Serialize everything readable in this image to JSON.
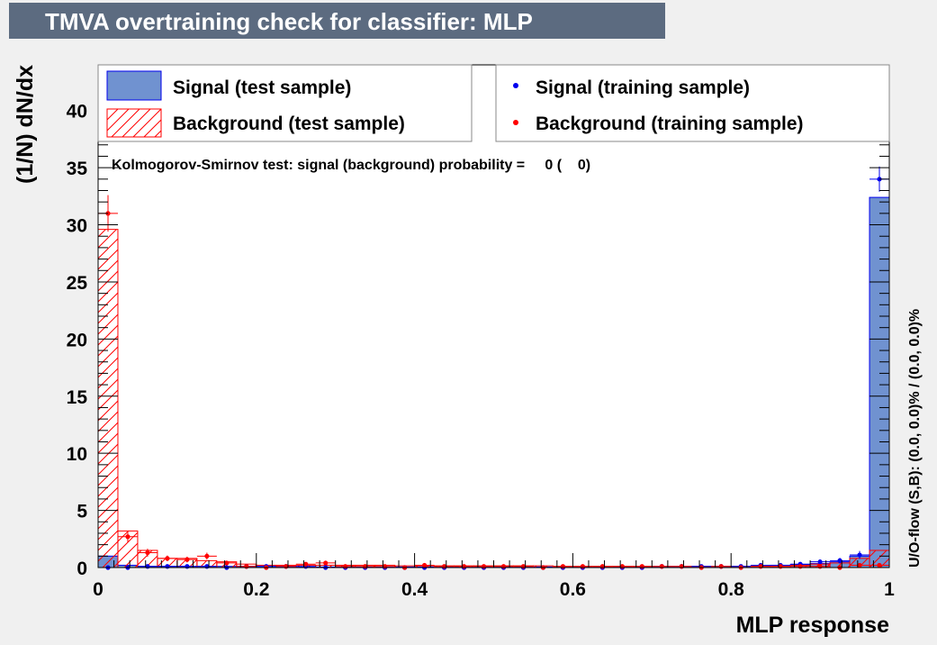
{
  "title": "TMVA overtraining check for classifier: MLP",
  "colors": {
    "signal_fill": "#7092d0",
    "signal_line": "#0000ee",
    "background_line": "#ff0000",
    "title_bar": "#5c6b80",
    "title_text": "#ffffff"
  },
  "legend": {
    "signal_test": "Signal (test sample)",
    "background_test": "Background (test sample)",
    "signal_train": "Signal (training sample)",
    "background_train": "Background (training sample)"
  },
  "ks_text": "Kolmogorov-Smirnov test: signal (background) probability =     0 (    0)",
  "overflow_text": "U/O-flow (S,B): (0.0, 0.0)% / (0.0, 0.0)%",
  "chart_data": {
    "type": "bar",
    "title": "TMVA overtraining check for classifier: MLP",
    "xlabel": "MLP response",
    "ylabel": "(1/N) dN/dx",
    "xlim": [
      0,
      1
    ],
    "ylim": [
      0,
      44
    ],
    "xticks": [
      0,
      0.2,
      0.4,
      0.6,
      0.8,
      1
    ],
    "xtick_labels": [
      "0",
      "0.2",
      "0.4",
      "0.6",
      "0.8",
      "1"
    ],
    "yticks": [
      0,
      5,
      10,
      15,
      20,
      25,
      30,
      35,
      40
    ],
    "ytick_labels": [
      "0",
      "5",
      "10",
      "15",
      "20",
      "25",
      "30",
      "35",
      "40"
    ],
    "grid": false,
    "legend_position": "top",
    "bins": 40,
    "series": [
      {
        "name": "Signal (test sample)",
        "style": "filled-histogram",
        "values": [
          1.0,
          0.2,
          0.1,
          0.1,
          0.1,
          0.1,
          0.1,
          0.1,
          0.1,
          0.1,
          0.05,
          0.05,
          0.05,
          0.05,
          0.05,
          0.05,
          0.05,
          0.05,
          0.05,
          0.05,
          0.05,
          0.05,
          0.05,
          0.05,
          0.05,
          0.05,
          0.05,
          0.05,
          0.05,
          0.05,
          0.1,
          0.1,
          0.1,
          0.15,
          0.2,
          0.25,
          0.35,
          0.5,
          1.0,
          32.4
        ]
      },
      {
        "name": "Background (test sample)",
        "style": "hatched-histogram",
        "values": [
          29.6,
          3.2,
          1.5,
          0.8,
          0.8,
          0.6,
          0.5,
          0.3,
          0.2,
          0.2,
          0.2,
          0.2,
          0.2,
          0.2,
          0.2,
          0.15,
          0.15,
          0.15,
          0.15,
          0.15,
          0.15,
          0.15,
          0.15,
          0.1,
          0.1,
          0.1,
          0.1,
          0.1,
          0.1,
          0.1,
          0.1,
          0.1,
          0.1,
          0.1,
          0.1,
          0.2,
          0.3,
          0.4,
          0.8,
          1.5
        ]
      },
      {
        "name": "Signal (training sample)",
        "style": "points",
        "values": [
          0.0,
          0.0,
          0.1,
          0.1,
          0.1,
          0.1,
          0.0,
          0.1,
          0.1,
          0.1,
          0.1,
          0.0,
          0.0,
          0.0,
          0.0,
          0.0,
          0.0,
          0.0,
          0.0,
          0.0,
          0.0,
          0.0,
          0.0,
          0.0,
          0.0,
          0.0,
          0.0,
          0.0,
          0.1,
          0.1,
          0.1,
          0.1,
          0.1,
          0.2,
          0.2,
          0.3,
          0.5,
          0.6,
          1.1,
          34.0
        ],
        "errors": [
          0.05,
          0.05,
          0.05,
          0.05,
          0.05,
          0.05,
          0.05,
          0.05,
          0.05,
          0.05,
          0.05,
          0.05,
          0.05,
          0.05,
          0.05,
          0.05,
          0.05,
          0.05,
          0.05,
          0.05,
          0.05,
          0.05,
          0.05,
          0.05,
          0.05,
          0.05,
          0.05,
          0.05,
          0.05,
          0.05,
          0.05,
          0.05,
          0.05,
          0.05,
          0.1,
          0.15,
          0.2,
          0.25,
          0.35,
          1.1
        ]
      },
      {
        "name": "Background (training sample)",
        "style": "points",
        "values": [
          31.0,
          2.7,
          1.3,
          0.8,
          0.7,
          1.0,
          0.4,
          0.1,
          0.0,
          0.1,
          0.3,
          0.4,
          0.1,
          0.1,
          0.1,
          0.0,
          0.2,
          0.1,
          0.1,
          0.1,
          0.1,
          0.1,
          0.0,
          0.1,
          0.1,
          0.1,
          0.1,
          0.1,
          0.1,
          0.1,
          0.0,
          0.1,
          0.0,
          0.1,
          0.1,
          0.1,
          0.1,
          0.0,
          0.2,
          0.2
        ],
        "errors": [
          1.6,
          0.5,
          0.35,
          0.25,
          0.25,
          0.3,
          0.2,
          0.1,
          0.05,
          0.1,
          0.15,
          0.2,
          0.1,
          0.1,
          0.1,
          0.05,
          0.1,
          0.1,
          0.1,
          0.1,
          0.1,
          0.1,
          0.05,
          0.1,
          0.1,
          0.1,
          0.1,
          0.1,
          0.1,
          0.1,
          0.05,
          0.1,
          0.05,
          0.1,
          0.1,
          0.1,
          0.1,
          0.05,
          0.1,
          0.1
        ]
      }
    ]
  }
}
